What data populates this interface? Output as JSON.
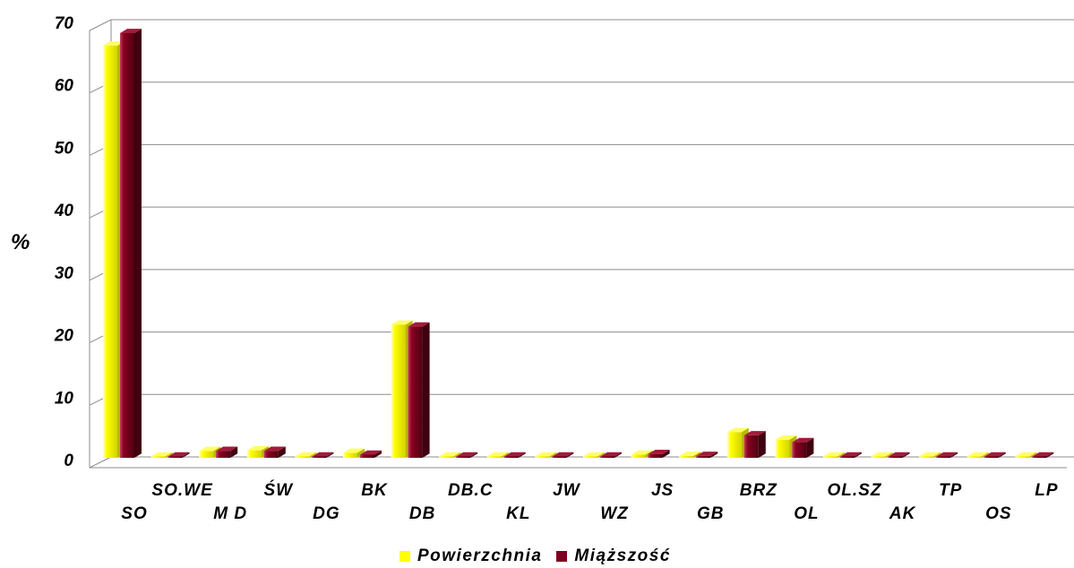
{
  "chart_data": {
    "type": "bar",
    "title": "",
    "xlabel": "",
    "ylabel": "%",
    "ylim": [
      0,
      70
    ],
    "yticks": [
      0,
      10,
      20,
      30,
      40,
      50,
      60,
      70
    ],
    "grid": true,
    "legend_position": "bottom",
    "categories": [
      "SO",
      "SO.WE",
      "MD",
      "ŚW",
      "DG",
      "BK",
      "DB",
      "DB.C",
      "KL",
      "JW",
      "WZ",
      "JS",
      "GB",
      "BRZ",
      "OL",
      "OL.SZ",
      "AK",
      "TP",
      "OS",
      "LP"
    ],
    "category_labels": [
      "SO",
      "SO.WE",
      "M D",
      "ŚW",
      "DG",
      "BK",
      "DB",
      "DB.C",
      "KL",
      "JW",
      "WZ",
      "JS",
      "GB",
      "BRZ",
      "OL",
      "OL.SZ",
      "AK",
      "TP",
      "OS",
      "LP"
    ],
    "series": [
      {
        "name": "Powierzchnia",
        "color": "#ffff00",
        "values": [
          66.0,
          0.0,
          1.1,
          1.2,
          0.0,
          0.8,
          21.3,
          0.0,
          0.0,
          0.0,
          0.0,
          0.5,
          0.3,
          4.1,
          2.9,
          0.0,
          0.0,
          0.0,
          0.0,
          0.1
        ]
      },
      {
        "name": "Miąższość",
        "color": "#800020",
        "values": [
          68.0,
          0.0,
          1.1,
          1.1,
          0.0,
          0.5,
          21.0,
          0.0,
          0.0,
          0.0,
          0.0,
          0.6,
          0.3,
          3.6,
          2.5,
          0.0,
          0.0,
          0.0,
          0.0,
          0.1
        ]
      }
    ]
  }
}
